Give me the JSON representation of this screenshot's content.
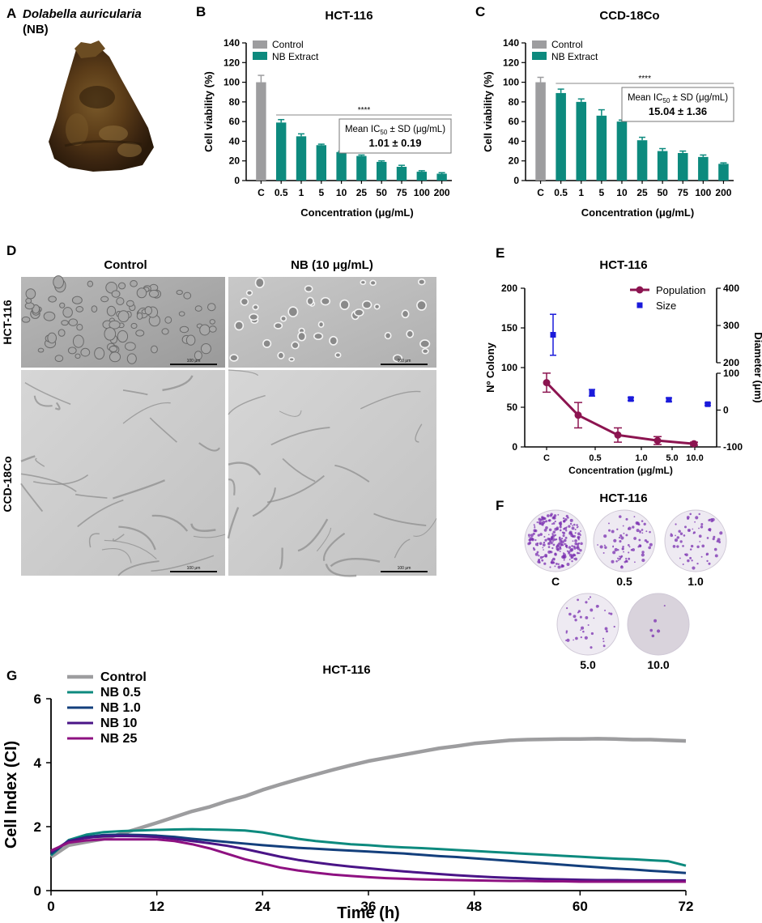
{
  "colors": {
    "control_gray": "#9d9d9f",
    "teal": "#0d8a7e",
    "maroon": "#8c1450",
    "blue": "#1a1adb",
    "navy": "#133f7c",
    "indigo": "#4a1487",
    "magenta": "#8e1181",
    "axis": "#000000"
  },
  "panels": {
    "A": {
      "letter": "A",
      "title_line1": "Dolabella auricularia",
      "title_line2": "(NB)"
    },
    "D": {
      "letter": "D",
      "col_control": "Control",
      "col_nb": "NB (10 μg/mL)",
      "row_hct": "HCT-116",
      "row_ccd": "CCD-18Co",
      "scale_label": "100 μm"
    },
    "F": {
      "letter": "F",
      "title": "HCT-116",
      "wells": [
        {
          "label": "C",
          "density": 0.9
        },
        {
          "label": "0.5",
          "density": 0.3
        },
        {
          "label": "1.0",
          "density": 0.25
        },
        {
          "label": "5.0",
          "density": 0.15
        },
        {
          "label": "10.0",
          "density": 0.02
        }
      ]
    }
  },
  "chart_data": [
    {
      "id": "B",
      "letter": "B",
      "type": "bar",
      "title": "HCT-116",
      "xlabel": "Concentration (μg/mL)",
      "ylabel": "Cell viability (%)",
      "ylim": [
        0,
        140
      ],
      "yticks": [
        0,
        20,
        40,
        60,
        80,
        100,
        120,
        140
      ],
      "categories": [
        "C",
        "0.5",
        "1",
        "5",
        "10",
        "25",
        "50",
        "75",
        "100",
        "200"
      ],
      "values": [
        100,
        59,
        45,
        36,
        29,
        25,
        19,
        14,
        9,
        7
      ],
      "errors": [
        7,
        3,
        2.5,
        1,
        0.8,
        1,
        1,
        1.5,
        1,
        1
      ],
      "legend": [
        "Control",
        "NB Extract"
      ],
      "significance": "****",
      "ic50_label": "Mean IC50 ± SD (μg/mL)",
      "ic50_value": "1.01 ± 0.19"
    },
    {
      "id": "C",
      "letter": "C",
      "type": "bar",
      "title": "CCD-18Co",
      "xlabel": "Concentration (μg/mL)",
      "ylabel": "Cell viability (%)",
      "ylim": [
        0,
        140
      ],
      "yticks": [
        0,
        20,
        40,
        60,
        80,
        100,
        120,
        140
      ],
      "categories": [
        "C",
        "0.5",
        "1",
        "5",
        "10",
        "25",
        "50",
        "75",
        "100",
        "200"
      ],
      "values": [
        100,
        89,
        80,
        66,
        60,
        41,
        30,
        28,
        24,
        17
      ],
      "errors": [
        5,
        4,
        3,
        6,
        1.5,
        3,
        2.5,
        2,
        2,
        1
      ],
      "legend": [
        "Control",
        "NB Extract"
      ],
      "significance": "****",
      "ic50_label": "Mean IC50 ± SD (μg/mL)",
      "ic50_value": "15.04 ± 1.36"
    },
    {
      "id": "E",
      "letter": "E",
      "type": "line",
      "title": "HCT-116",
      "xlabel": "Concentration (μg/mL)",
      "ylabel_left": "Nº Colony",
      "ylabel_right": "Diameter (μm)",
      "categories": [
        "C",
        "0.5",
        "1.0",
        "5.0",
        "10.0"
      ],
      "ylim_left": [
        0,
        200
      ],
      "yticks_left": [
        0,
        50,
        100,
        150,
        200
      ],
      "right_upper_ticks": [
        200,
        300,
        400
      ],
      "right_lower_ticks": [
        -100,
        0,
        100
      ],
      "legend": [
        "Population",
        "Size"
      ],
      "population": {
        "values": [
          81,
          40,
          15,
          8,
          4
        ],
        "errors": [
          12,
          16,
          9,
          5,
          2
        ]
      },
      "size": {
        "values": [
          275,
          47,
          30,
          28,
          16
        ],
        "errors": [
          55,
          9,
          4,
          5,
          3
        ]
      }
    },
    {
      "id": "G",
      "letter": "G",
      "type": "line",
      "title": "HCT-116",
      "xlabel": "Time (h)",
      "ylabel": "Cell Index (CI)",
      "xlim": [
        0,
        72
      ],
      "ylim": [
        0,
        6
      ],
      "xticks": [
        0,
        12,
        24,
        36,
        48,
        60,
        72
      ],
      "yticks": [
        0,
        2,
        4,
        6
      ],
      "series": [
        {
          "name": "Control",
          "x": [
            0,
            2,
            4,
            6,
            8,
            10,
            12,
            14,
            16,
            18,
            20,
            22,
            24,
            26,
            28,
            30,
            32,
            34,
            36,
            38,
            40,
            42,
            44,
            46,
            48,
            50,
            52,
            54,
            56,
            58,
            60,
            62,
            64,
            66,
            68,
            70,
            72
          ],
          "y": [
            1.05,
            1.42,
            1.52,
            1.62,
            1.78,
            1.95,
            2.12,
            2.3,
            2.48,
            2.62,
            2.8,
            2.95,
            3.15,
            3.32,
            3.48,
            3.63,
            3.78,
            3.92,
            4.05,
            4.15,
            4.25,
            4.35,
            4.45,
            4.52,
            4.6,
            4.65,
            4.7,
            4.72,
            4.73,
            4.74,
            4.74,
            4.75,
            4.74,
            4.72,
            4.72,
            4.7,
            4.68
          ]
        },
        {
          "name": "NB 0.5",
          "x": [
            0,
            2,
            4,
            6,
            8,
            10,
            12,
            14,
            16,
            18,
            20,
            22,
            24,
            26,
            28,
            30,
            32,
            34,
            36,
            38,
            40,
            42,
            44,
            46,
            48,
            50,
            52,
            54,
            56,
            58,
            60,
            62,
            64,
            66,
            68,
            70,
            72
          ],
          "y": [
            1.1,
            1.58,
            1.75,
            1.83,
            1.86,
            1.88,
            1.9,
            1.91,
            1.92,
            1.91,
            1.9,
            1.88,
            1.82,
            1.72,
            1.62,
            1.55,
            1.5,
            1.45,
            1.42,
            1.38,
            1.35,
            1.33,
            1.3,
            1.27,
            1.24,
            1.21,
            1.18,
            1.15,
            1.12,
            1.09,
            1.06,
            1.03,
            1.0,
            0.98,
            0.95,
            0.92,
            0.78
          ]
        },
        {
          "name": "NB 1.0",
          "x": [
            0,
            2,
            4,
            6,
            8,
            10,
            12,
            14,
            16,
            18,
            20,
            22,
            24,
            26,
            28,
            30,
            32,
            34,
            36,
            38,
            40,
            42,
            44,
            46,
            48,
            50,
            52,
            54,
            56,
            58,
            60,
            62,
            64,
            66,
            68,
            70,
            72
          ],
          "y": [
            1.15,
            1.55,
            1.68,
            1.74,
            1.75,
            1.74,
            1.72,
            1.68,
            1.62,
            1.57,
            1.52,
            1.47,
            1.42,
            1.38,
            1.34,
            1.31,
            1.28,
            1.25,
            1.22,
            1.19,
            1.16,
            1.12,
            1.08,
            1.05,
            1.01,
            0.97,
            0.93,
            0.89,
            0.85,
            0.81,
            0.77,
            0.73,
            0.69,
            0.66,
            0.62,
            0.59,
            0.55
          ]
        },
        {
          "name": "NB 10",
          "x": [
            0,
            2,
            4,
            6,
            8,
            10,
            12,
            14,
            16,
            18,
            20,
            22,
            24,
            26,
            28,
            30,
            32,
            34,
            36,
            38,
            40,
            42,
            44,
            46,
            48,
            50,
            52,
            54,
            56,
            58,
            60,
            62,
            64,
            66,
            68,
            70,
            72
          ],
          "y": [
            1.2,
            1.55,
            1.65,
            1.7,
            1.71,
            1.7,
            1.68,
            1.62,
            1.55,
            1.48,
            1.4,
            1.3,
            1.18,
            1.06,
            0.96,
            0.88,
            0.81,
            0.75,
            0.7,
            0.65,
            0.6,
            0.56,
            0.52,
            0.48,
            0.45,
            0.42,
            0.4,
            0.38,
            0.36,
            0.35,
            0.34,
            0.33,
            0.33,
            0.32,
            0.32,
            0.32,
            0.32
          ]
        },
        {
          "name": "NB 25",
          "x": [
            0,
            2,
            4,
            6,
            8,
            10,
            12,
            14,
            16,
            18,
            20,
            22,
            24,
            26,
            28,
            30,
            32,
            34,
            36,
            38,
            40,
            42,
            44,
            46,
            48,
            50,
            52,
            54,
            56,
            58,
            60,
            62,
            64,
            66,
            68,
            70,
            72
          ],
          "y": [
            1.25,
            1.5,
            1.57,
            1.6,
            1.6,
            1.6,
            1.6,
            1.55,
            1.45,
            1.32,
            1.15,
            0.98,
            0.85,
            0.72,
            0.63,
            0.56,
            0.5,
            0.46,
            0.42,
            0.39,
            0.37,
            0.35,
            0.34,
            0.33,
            0.32,
            0.31,
            0.3,
            0.3,
            0.29,
            0.29,
            0.28,
            0.28,
            0.28,
            0.28,
            0.28,
            0.28,
            0.28
          ]
        }
      ]
    }
  ]
}
